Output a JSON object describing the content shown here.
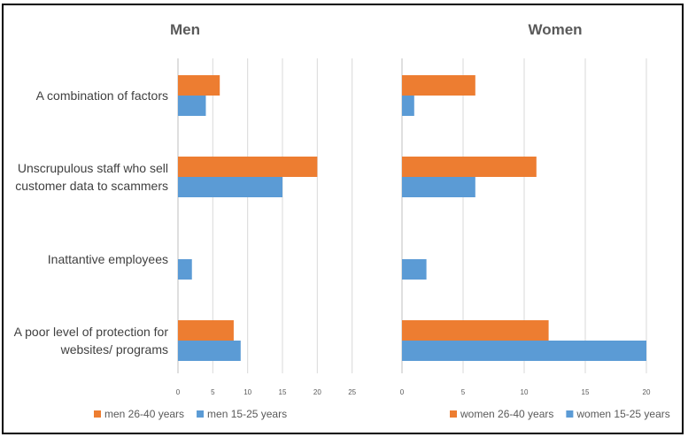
{
  "chart_data": [
    {
      "type": "bar",
      "orientation": "horizontal",
      "title": "Men",
      "categories": [
        "A combination of factors",
        "Unscrupulous staff who sell customer data to scammers",
        "Inattantive employees",
        "A poor level of protection for websites/ programs"
      ],
      "series": [
        {
          "name": "men 26-40 years",
          "color": "#ED7D31",
          "values": [
            6,
            20,
            0,
            8
          ]
        },
        {
          "name": "men 15-25 years",
          "color": "#5B9BD5",
          "values": [
            4,
            15,
            2,
            9
          ]
        }
      ],
      "xlim": [
        0,
        30
      ],
      "xticks": [
        0,
        5,
        10,
        15,
        20,
        25
      ],
      "grid": true,
      "legend_position": "bottom-left"
    },
    {
      "type": "bar",
      "orientation": "horizontal",
      "title": "Women",
      "categories": [
        "A combination of factors",
        "Unscrupulous staff who sell customer data to scammers",
        "Inattantive employees",
        "A poor level of protection for websites/ programs"
      ],
      "series": [
        {
          "name": "women 26-40 years",
          "color": "#ED7D31",
          "values": [
            6,
            11,
            0,
            12
          ]
        },
        {
          "name": "women 15-25 years",
          "color": "#5B9BD5",
          "values": [
            1,
            6,
            2,
            20
          ]
        }
      ],
      "xlim": [
        0,
        20
      ],
      "xticks": [
        0,
        5,
        10,
        15,
        20
      ],
      "grid": true,
      "legend_position": "bottom-right"
    }
  ],
  "category_lines": [
    [
      "A combination of factors"
    ],
    [
      "Unscrupulous staff who sell",
      "customer data to scammers"
    ],
    [
      "Inattantive employees"
    ],
    [
      "A poor level of protection for",
      "websites/ programs"
    ]
  ]
}
